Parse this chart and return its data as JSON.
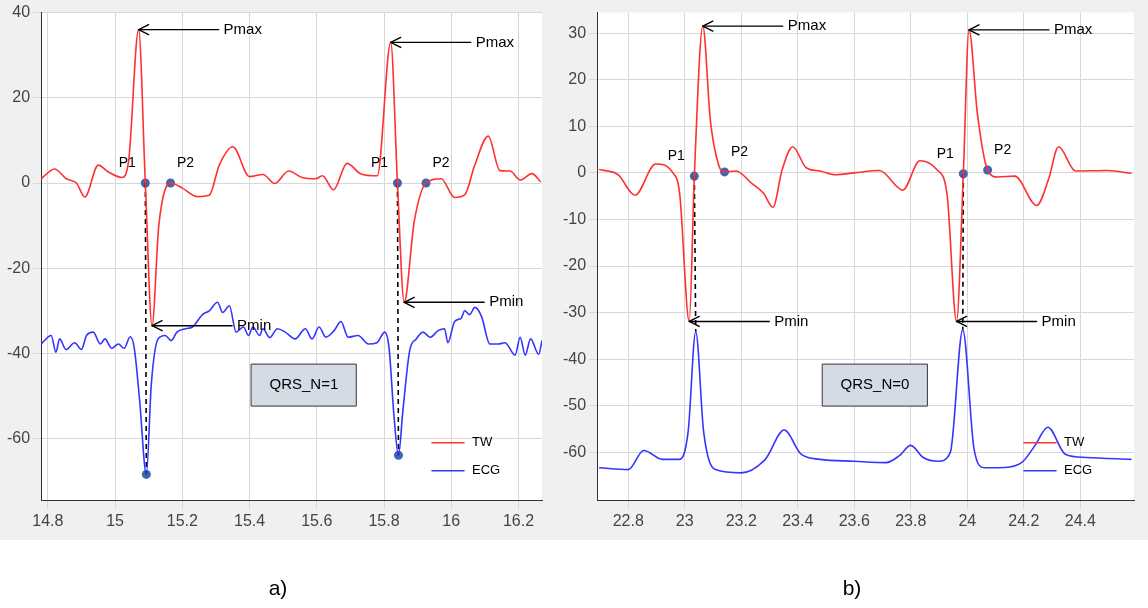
{
  "chart_data": [
    {
      "type": "line",
      "xlim": [
        14.78,
        16.27
      ],
      "ylim": [
        -74.6,
        40
      ],
      "xticks": [
        14.8,
        15,
        15.2,
        15.4,
        15.6,
        15.8,
        16,
        16.2
      ],
      "yticks": [
        -60,
        -40,
        -20,
        0,
        20,
        40
      ],
      "grid": true,
      "legend": "bottom right",
      "series": [
        {
          "name": "TW",
          "color": "#ff3030",
          "x": [
            14.78,
            14.82,
            14.855,
            14.885,
            14.91,
            14.95,
            14.98,
            15.02,
            15.04,
            15.07,
            15.09,
            15.11,
            15.13,
            15.165,
            15.2,
            15.245,
            15.28,
            15.31,
            15.35,
            15.4,
            15.44,
            15.475,
            15.516,
            15.556,
            15.597,
            15.617,
            15.65,
            15.69,
            15.73,
            15.78,
            15.82,
            15.84,
            15.86,
            15.89,
            15.925,
            15.97,
            16.01,
            16.04,
            16.07,
            16.11,
            16.145,
            16.175,
            16.205,
            16.24,
            16.266
          ],
          "values": [
            1,
            3.3,
            1,
            0,
            -3.3,
            4.2,
            2.6,
            1.3,
            5,
            36,
            0,
            -33.5,
            -10,
            0,
            -1.2,
            -3.2,
            -2.9,
            4.2,
            8.5,
            1.5,
            2,
            -0.1,
            2.8,
            1.3,
            1,
            1.7,
            -1.6,
            4.6,
            2.2,
            1.7,
            33,
            0,
            -28,
            -9,
            0,
            1,
            -3.4,
            -2.8,
            4.2,
            11,
            2.9,
            2.8,
            0.7,
            2.2,
            0.3
          ]
        },
        {
          "name": "ECG",
          "color": "#3535ff",
          "x": [
            14.78,
            14.81,
            14.824,
            14.835,
            14.854,
            14.88,
            14.9,
            14.915,
            14.935,
            14.956,
            14.97,
            14.99,
            15.01,
            15.027,
            15.045,
            15.057,
            15.073,
            15.093,
            15.108,
            15.128,
            15.149,
            15.167,
            15.184,
            15.21,
            15.23,
            15.26,
            15.28,
            15.305,
            15.32,
            15.34,
            15.36,
            15.382,
            15.397,
            15.41,
            15.43,
            15.44,
            15.46,
            15.483,
            15.506,
            15.536,
            15.566,
            15.586,
            15.607,
            15.627,
            15.652,
            15.672,
            15.693,
            15.723,
            15.754,
            15.779,
            15.802,
            15.815,
            15.83,
            15.843,
            15.856,
            15.876,
            15.896,
            15.916,
            15.937,
            15.962,
            15.98,
            15.99,
            16.01,
            16.03,
            16.04,
            16.055,
            16.07,
            16.09,
            16.115,
            16.14,
            16.16,
            16.19,
            16.205,
            16.22,
            16.236,
            16.26,
            16.27
          ],
          "values": [
            -37.8,
            -35.8,
            -39.7,
            -36.6,
            -39.1,
            -37.5,
            -39.1,
            -35.8,
            -35,
            -37.8,
            -36.6,
            -38.8,
            -37.8,
            -38.8,
            -36.1,
            -38.7,
            -51,
            -68.4,
            -47,
            -36.6,
            -35.8,
            -37,
            -35,
            -34.2,
            -33.8,
            -30.9,
            -30,
            -28,
            -30.4,
            -28.8,
            -35,
            -33.8,
            -35.8,
            -33.8,
            -35.8,
            -34.2,
            -36.3,
            -34.2,
            -35,
            -36.6,
            -34.2,
            -36.6,
            -33.8,
            -36.2,
            -34.6,
            -32.5,
            -36.2,
            -35.8,
            -37.8,
            -37.5,
            -35,
            -38.7,
            -55,
            -63.9,
            -53.6,
            -39.5,
            -36.6,
            -35,
            -36.2,
            -34.6,
            -34.2,
            -37.5,
            -32.5,
            -31.7,
            -30,
            -30.9,
            -29.2,
            -31.3,
            -37.8,
            -37.8,
            -37.5,
            -40.4,
            -36.2,
            -40.4,
            -36.6,
            -40.2,
            -37
          ]
        },
        {
          "type": "line",
          "color": "#000000",
          "line_style": "dashed",
          "x": [
            15.09,
            15.093
          ],
          "values": [
            0,
            -68.4
          ]
        },
        {
          "type": "line",
          "color": "#000000",
          "line_style": "dashed",
          "x": [
            15.84,
            15.843
          ],
          "values": [
            0,
            -63.9
          ]
        },
        {
          "type": "scatter",
          "color": "#3f66b0",
          "marker": "circle",
          "x": [
            15.09,
            15.165,
            15.093,
            15.84,
            15.925,
            15.843
          ],
          "values": [
            0,
            0,
            -68.4,
            0,
            0,
            -63.9
          ],
          "value_labels": [
            "P1",
            "P2",
            null,
            "P1",
            "P2",
            null
          ]
        }
      ],
      "annotations": [
        {
          "text": "Pmax",
          "x": 15.07,
          "y": 36
        },
        {
          "text": "Pmin",
          "x": 15.11,
          "y": -33.5
        },
        {
          "text": "Pmax",
          "x": 15.82,
          "y": 33
        },
        {
          "text": "Pmin",
          "x": 15.86,
          "y": -28
        },
        "QRS_N=1",
        "a)"
      ]
    },
    {
      "type": "line",
      "xlim": [
        22.69,
        24.59
      ],
      "ylim": [
        -70.4,
        34.4
      ],
      "xticks": [
        22.8,
        23,
        23.2,
        23.4,
        23.6,
        23.8,
        24,
        24.2,
        24.4
      ],
      "yticks": [
        -60,
        -50,
        -40,
        -30,
        -20,
        -10,
        0,
        10,
        20,
        30
      ],
      "grid": true,
      "legend": "bottom right",
      "series": [
        {
          "name": "TW",
          "color": "#ff3030",
          "x": [
            22.697,
            22.764,
            22.824,
            22.897,
            22.958,
            22.982,
            23.016,
            23.034,
            23.064,
            23.091,
            23.121,
            23.141,
            23.182,
            23.236,
            23.279,
            23.312,
            23.345,
            23.382,
            23.43,
            23.479,
            23.533,
            23.6,
            23.689,
            23.772,
            23.832,
            23.892,
            23.928,
            23.962,
            23.986,
            24.006,
            24.036,
            24.072,
            24.108,
            24.168,
            24.246,
            24.287,
            24.323,
            24.383,
            24.497,
            24.581
          ],
          "values": [
            0.7,
            -0.4,
            -4.8,
            1.9,
            0,
            -4.4,
            -31.9,
            -0.7,
            31.5,
            11.1,
            1.5,
            0.2,
            0.4,
            -2.2,
            -4.4,
            -7.4,
            0.7,
            5.6,
            1.1,
            0.4,
            -0.4,
            0,
            0.5,
            -3.7,
            2.6,
            0.7,
            -4.4,
            -31.9,
            -0.2,
            30.7,
            12.6,
            0.6,
            -0.9,
            -0.7,
            -7,
            -1.5,
            5.6,
            0.4,
            0.5,
            -0.1
          ]
        },
        {
          "name": "ECG",
          "color": "#3535ff",
          "x": [
            22.697,
            22.8,
            22.855,
            22.921,
            22.982,
            23.012,
            23.039,
            23.067,
            23.109,
            23.2,
            23.285,
            23.352,
            23.412,
            23.479,
            23.6,
            23.713,
            23.76,
            23.8,
            23.844,
            23.898,
            23.94,
            23.984,
            24.024,
            24.06,
            24.108,
            24.192,
            24.24,
            24.285,
            24.347,
            24.419,
            24.581
          ],
          "values": [
            -63.3,
            -63.7,
            -59.6,
            -61.5,
            -61.5,
            -55.6,
            -34.1,
            -55.6,
            -63.7,
            -64.4,
            -61.5,
            -55.2,
            -60.4,
            -61.5,
            -61.9,
            -62.2,
            -60.7,
            -58.5,
            -61.1,
            -61.9,
            -60,
            -33.7,
            -59.3,
            -63.3,
            -63.3,
            -62.2,
            -58.5,
            -54.6,
            -60.4,
            -61.1,
            -61.5
          ]
        },
        {
          "type": "line",
          "color": "#000000",
          "line_style": "dashed",
          "x": [
            23.034,
            23.039
          ],
          "values": [
            -0.7,
            -34.1
          ]
        },
        {
          "type": "line",
          "color": "#000000",
          "line_style": "dashed",
          "x": [
            23.986,
            23.984
          ],
          "values": [
            -0.2,
            -33.7
          ]
        },
        {
          "type": "scatter",
          "color": "#3f66b0",
          "marker": "circle",
          "x": [
            23.034,
            23.141,
            23.986,
            24.072
          ],
          "values": [
            -0.7,
            0.2,
            -0.2,
            0.6
          ],
          "value_labels": [
            "P1",
            "P2",
            "P1",
            "P2"
          ]
        }
      ],
      "annotations": [
        {
          "text": "Pmax",
          "x": 23.064,
          "y": 31.5
        },
        {
          "text": "Pmin",
          "x": 23.016,
          "y": -31.9
        },
        {
          "text": "Pmax",
          "x": 24.006,
          "y": 30.7
        },
        {
          "text": "Pmin",
          "x": 23.962,
          "y": -31.9
        },
        "QRS_N=0",
        "b)"
      ]
    }
  ]
}
